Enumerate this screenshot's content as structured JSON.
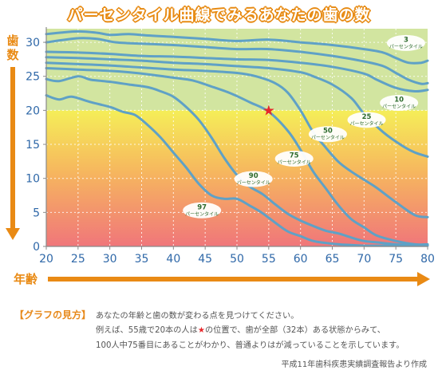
{
  "title": "パーセンタイル曲線でみるあなたの歯の数",
  "chart_data": {
    "type": "line",
    "xlabel": "年齢",
    "ylabel": "歯数",
    "xlim": [
      20,
      80
    ],
    "ylim": [
      0,
      32
    ],
    "x_ticks": [
      20,
      25,
      30,
      35,
      40,
      45,
      50,
      55,
      60,
      65,
      70,
      75,
      80
    ],
    "y_ticks": [
      0,
      5,
      10,
      15,
      20,
      25,
      30
    ],
    "x_tick_labels": [
      "20",
      "25",
      "30",
      "35",
      "40",
      "45",
      "50",
      "55",
      "60",
      "65",
      "70",
      "75",
      "80"
    ],
    "y_tick_labels": [
      "0",
      "5",
      "10",
      "15",
      "20",
      "25",
      "30"
    ],
    "background_bands": [
      {
        "from": 20,
        "to": 32,
        "color": "#d2e5a0"
      },
      {
        "from": 0,
        "to": 20,
        "colors": [
          "#f5ee58",
          "#f59a63",
          "#f0767a"
        ]
      }
    ],
    "line_color": "#5fa1c6",
    "series": [
      {
        "name": "3パーセンタイル",
        "x": [
          20,
          22,
          25,
          28,
          30,
          33,
          36,
          40,
          45,
          50,
          55,
          60,
          65,
          70,
          73,
          75,
          77,
          79,
          80
        ],
        "y": [
          31.2,
          31.4,
          31.6,
          31.4,
          31.1,
          31.2,
          31.0,
          30.8,
          30.5,
          30.2,
          30.4,
          30.0,
          29.6,
          29.0,
          28.5,
          27.7,
          27.0,
          27.0,
          27.3
        ]
      },
      {
        "name": "",
        "x": [
          20,
          25,
          28,
          31,
          35,
          40,
          45,
          50,
          55,
          60,
          65,
          70,
          73,
          75,
          77,
          79,
          80
        ],
        "y": [
          30.0,
          30.6,
          30.5,
          30.0,
          29.8,
          29.6,
          29.3,
          29.0,
          29.0,
          28.6,
          28.0,
          27.2,
          26.5,
          25.5,
          24.5,
          23.9,
          24.0
        ]
      },
      {
        "name": "10パーセンタイル",
        "x": [
          20,
          25,
          30,
          35,
          40,
          45,
          50,
          55,
          60,
          65,
          70,
          72,
          75,
          78,
          80
        ],
        "y": [
          28.6,
          28.5,
          28.3,
          28.0,
          27.9,
          27.7,
          27.5,
          27.4,
          27.0,
          26.4,
          25.4,
          24.5,
          23.3,
          22.8,
          23.0
        ]
      },
      {
        "name": "25パーセンタイル",
        "x": [
          20,
          25,
          30,
          35,
          40,
          45,
          50,
          55,
          60,
          62,
          65,
          68,
          70,
          73,
          76,
          78,
          80
        ],
        "y": [
          27.8,
          27.7,
          27.5,
          27.3,
          27.0,
          26.8,
          26.5,
          26.2,
          25.6,
          25.0,
          23.8,
          21.8,
          19.5,
          16.8,
          14.8,
          13.8,
          13.2
        ]
      },
      {
        "name": "50パーセンタイル",
        "x": [
          20,
          25,
          30,
          35,
          40,
          45,
          50,
          53,
          56,
          58,
          60,
          62,
          64,
          66,
          68,
          70,
          72,
          75,
          78,
          80
        ],
        "y": [
          27.0,
          26.8,
          26.6,
          26.3,
          26.0,
          25.8,
          25.5,
          25.0,
          24.0,
          22.6,
          20.0,
          16.8,
          14.5,
          12.4,
          11.0,
          9.8,
          8.6,
          6.5,
          4.6,
          4.3
        ]
      },
      {
        "name": "75パーセンタイル",
        "x": [
          20,
          25,
          30,
          33,
          36,
          40,
          43,
          46,
          49,
          52,
          55,
          58,
          60,
          62,
          64,
          66,
          68,
          70,
          72,
          75,
          78,
          80
        ],
        "y": [
          26.2,
          26.0,
          25.8,
          25.6,
          25.3,
          24.8,
          24.4,
          23.5,
          22.5,
          21.2,
          19.8,
          17.0,
          14.2,
          11.0,
          8.5,
          6.0,
          4.0,
          2.8,
          1.6,
          0.8,
          0.3,
          0.3
        ]
      },
      {
        "name": "90パーセンタイル",
        "x": [
          20,
          22,
          25,
          27,
          30,
          33,
          36,
          38,
          40,
          42,
          44,
          46,
          48,
          50,
          52,
          54,
          56,
          58,
          60,
          62,
          64,
          66,
          68,
          70,
          72,
          75,
          78,
          80
        ],
        "y": [
          24.6,
          24.3,
          25.0,
          24.5,
          24.2,
          23.8,
          23.4,
          22.8,
          22.0,
          20.5,
          18.6,
          16.0,
          13.0,
          10.5,
          8.8,
          7.7,
          6.2,
          4.8,
          3.8,
          3.0,
          2.3,
          1.9,
          1.3,
          0.8,
          0.6,
          0.3,
          0.2,
          0.2
        ]
      },
      {
        "name": "97パーセンタイル",
        "x": [
          20,
          22,
          24,
          27,
          30,
          32,
          34,
          36,
          38,
          40,
          42,
          44,
          46,
          48,
          50,
          52,
          54,
          56,
          58,
          60,
          62,
          64,
          66,
          68,
          70,
          72,
          75,
          78,
          80
        ],
        "y": [
          22.2,
          21.6,
          22.0,
          21.2,
          20.5,
          19.8,
          19.3,
          17.8,
          16.0,
          13.8,
          11.6,
          9.2,
          7.5,
          7.0,
          7.0,
          6.0,
          4.9,
          3.5,
          2.2,
          1.5,
          0.8,
          0.5,
          0.3,
          0.2,
          0.1,
          0.1,
          0.1,
          0.1,
          0.1
        ]
      }
    ],
    "labels": [
      {
        "number": "3",
        "text": "パーセンタイル",
        "x": 76.6,
        "y": 29.9
      },
      {
        "number": "10",
        "text": "パーセンタイル",
        "x": 75.5,
        "y": 21.1
      },
      {
        "number": "25",
        "text": "パーセンタイル",
        "x": 70.4,
        "y": 18.6
      },
      {
        "number": "50",
        "text": "パーセンタイル",
        "x": 64.3,
        "y": 16.5
      },
      {
        "number": "75",
        "text": "パーセンタイル",
        "x": 59.0,
        "y": 12.9
      },
      {
        "number": "90",
        "text": "パーセンタイル",
        "x": 52.6,
        "y": 9.9
      },
      {
        "number": "97",
        "text": "パーセンタイル",
        "x": 44.5,
        "y": 5.3
      }
    ],
    "marker": {
      "x": 55,
      "y": 20,
      "symbol": "★",
      "color": "#e8262a"
    }
  },
  "howto": {
    "label": "【グラフの見方】",
    "line1": "あなたの年齢と歯の数が変わる点を見つけてください。",
    "line2_before": "例えば、55歳で20本の人は",
    "line2_star": "★",
    "line2_after": "の位置で、歯が全部（32本）ある状態からみて、",
    "line3": "100人中75番目にあることがわかり、普通よりはが減っていることを示しています。"
  },
  "source": "平成11年歯科疾患実績調査報告より作成"
}
